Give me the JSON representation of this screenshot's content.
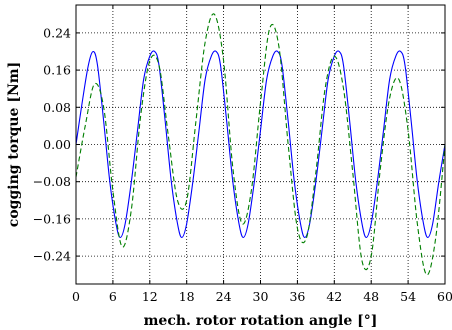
{
  "chart_data": {
    "type": "line",
    "title": "",
    "xlabel": "mech. rotor rotation angle [°]",
    "ylabel": "cogging torque [Nm]",
    "xlim": [
      0,
      60
    ],
    "ylim": [
      -0.3,
      0.3
    ],
    "grid": true,
    "legend": "none",
    "x_ticks": [
      0,
      6,
      12,
      18,
      24,
      30,
      36,
      42,
      48,
      54,
      60
    ],
    "x_tick_labels": [
      "0",
      "6",
      "12",
      "18",
      "24",
      "30",
      "36",
      "42",
      "48",
      "54",
      "60"
    ],
    "y_ticks": [
      -0.24,
      -0.16,
      -0.08,
      0.0,
      0.08,
      0.16,
      0.24
    ],
    "y_tick_labels": [
      "−0.24",
      "−0.16",
      "−0.08",
      "0.00",
      "0.08",
      "0.16",
      "0.24"
    ],
    "series": [
      {
        "color": "#0000ff",
        "style": "solid",
        "x": [
          0,
          1,
          2,
          2.8,
          3.5,
          4.5,
          5.5,
          6.5,
          7.2,
          8,
          9,
          10,
          11,
          12,
          12.8,
          13.5,
          14.5,
          15.5,
          16.5,
          17.2,
          18,
          19,
          20,
          21,
          22,
          22.8,
          23.5,
          24.5,
          25.5,
          26.5,
          27.2,
          28,
          29,
          30,
          31,
          32,
          32.8,
          33.5,
          34.5,
          35.5,
          36.5,
          37.2,
          38,
          39,
          40,
          41,
          42,
          42.8,
          43.5,
          44.5,
          45.5,
          46.5,
          47.2,
          48,
          49,
          50,
          51,
          52,
          52.8,
          53.5,
          54.5,
          55.5,
          56.5,
          57.2,
          58,
          59,
          60
        ],
        "y": [
          0.0,
          0.09,
          0.17,
          0.2,
          0.17,
          0.05,
          -0.08,
          -0.17,
          -0.2,
          -0.17,
          -0.08,
          0.03,
          0.14,
          0.19,
          0.2,
          0.17,
          0.05,
          -0.08,
          -0.17,
          -0.2,
          -0.17,
          -0.08,
          0.03,
          0.14,
          0.19,
          0.2,
          0.17,
          0.05,
          -0.08,
          -0.17,
          -0.2,
          -0.17,
          -0.08,
          0.03,
          0.14,
          0.19,
          0.2,
          0.17,
          0.05,
          -0.08,
          -0.17,
          -0.2,
          -0.17,
          -0.08,
          0.03,
          0.14,
          0.19,
          0.2,
          0.17,
          0.05,
          -0.08,
          -0.17,
          -0.2,
          -0.17,
          -0.08,
          0.03,
          0.14,
          0.19,
          0.2,
          0.17,
          0.05,
          -0.08,
          -0.17,
          -0.2,
          -0.17,
          -0.08,
          0.0
        ]
      },
      {
        "color": "#007f00",
        "style": "dashed",
        "x": [
          0,
          1.5,
          3,
          4.5,
          6,
          7.5,
          9,
          10.5,
          12,
          13.5,
          15,
          16.5,
          18,
          19.5,
          21,
          22.5,
          24,
          25.5,
          27,
          28.5,
          30,
          31.5,
          33,
          34.5,
          36,
          37.5,
          39,
          40.5,
          42,
          43.5,
          45,
          46.5,
          48,
          49.5,
          51,
          52.5,
          54,
          55.5,
          57,
          58.5,
          60
        ],
        "y": [
          -0.07,
          0.04,
          0.13,
          0.08,
          -0.1,
          -0.22,
          -0.14,
          0.06,
          0.18,
          0.17,
          0.02,
          -0.12,
          -0.12,
          0.05,
          0.22,
          0.28,
          0.18,
          -0.05,
          -0.17,
          -0.1,
          0.09,
          0.25,
          0.21,
          0.0,
          -0.18,
          -0.2,
          -0.06,
          0.12,
          0.19,
          0.12,
          -0.06,
          -0.25,
          -0.24,
          -0.05,
          0.1,
          0.14,
          0.03,
          -0.17,
          -0.28,
          -0.2,
          0.0
        ]
      }
    ]
  }
}
